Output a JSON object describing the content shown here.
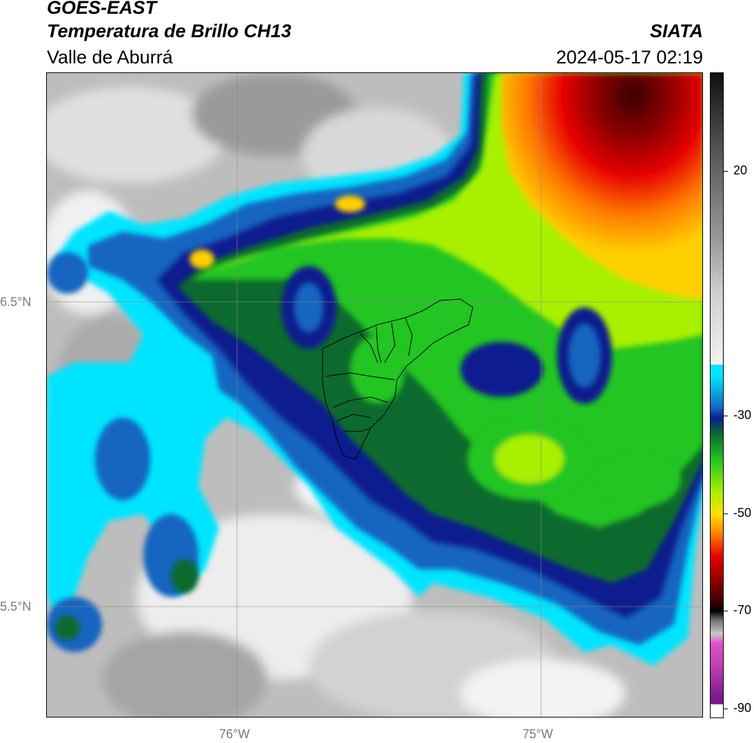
{
  "header": {
    "satellite": "GOES-EAST",
    "product": "Temperatura de Brillo CH13",
    "organization": "SIATA",
    "region": "Valle de Aburrá",
    "timestamp": "2024-05-17 02:19"
  },
  "axes": {
    "lat_labels": [
      "6.5°N",
      "5.5°N"
    ],
    "lon_labels": [
      "76°W",
      "75°W"
    ]
  },
  "colorbar": {
    "tick_labels": [
      "20",
      "-30",
      "-50",
      "-70",
      "-90"
    ],
    "colors": {
      "warm_gray_dark": "#111111",
      "warm_gray_light": "#f2f2f2",
      "cyan": "#00e5ff",
      "blue": "#1565c0",
      "navy": "#0a1f8f",
      "dark_green": "#0b6b2e",
      "green": "#22c522",
      "lime": "#a8f000",
      "yellow": "#ffe000",
      "orange": "#ff8000",
      "red": "#e60000",
      "dark_red": "#3a0000",
      "magenta": "#e050c8",
      "purple": "#7a1a8a"
    }
  }
}
